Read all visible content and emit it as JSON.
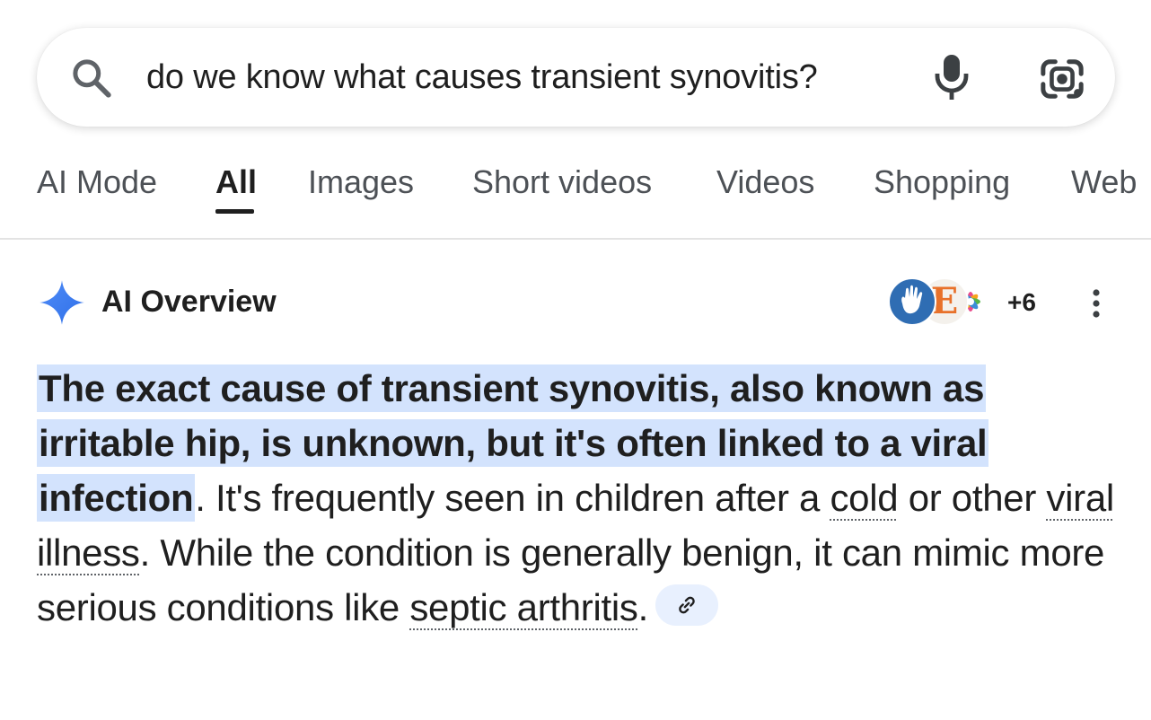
{
  "search": {
    "query": "do we know what causes transient synovitis?"
  },
  "tabs": [
    {
      "label": "AI Mode"
    },
    {
      "label": "All"
    },
    {
      "label": "Images"
    },
    {
      "label": "Short videos"
    },
    {
      "label": "Videos"
    },
    {
      "label": "Shopping"
    },
    {
      "label": "Web"
    }
  ],
  "active_tab": "All",
  "ai_overview": {
    "title": "AI Overview",
    "avatar_letter": "E",
    "source_count": "+6",
    "highlight": "The exact cause of transient synovitis, also known as irritable hip, is unknown, but it's often linked to a viral infection",
    "text_1": ". It's frequently seen in children after a ",
    "term_cold": "cold",
    "text_2": " or other ",
    "term_viral": "viral illness",
    "text_3": ". While the condition is generally benign, it can mimic more serious conditions like ",
    "term_septic": "septic arthritis",
    "text_4": "."
  },
  "colors": {
    "highlight": "#d3e3fd",
    "gemini_blue": "#4285f4",
    "text": "#1f1f1f",
    "tab_inactive": "#4d5156"
  },
  "icons": [
    "search-icon",
    "mic-icon",
    "google-lens-icon",
    "ai-sparkle-icon",
    "more-vert-icon",
    "link-icon"
  ]
}
